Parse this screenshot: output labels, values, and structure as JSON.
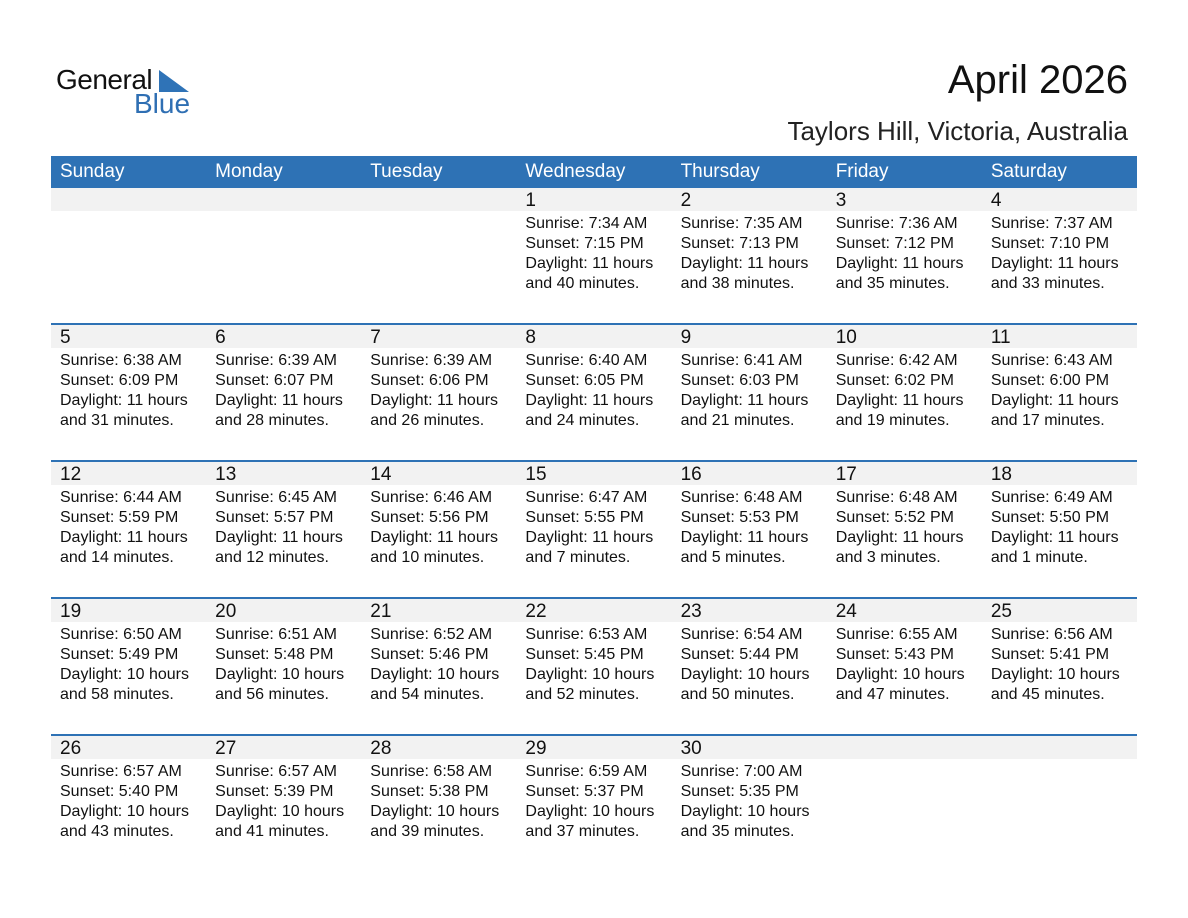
{
  "logo": {
    "text1": "General",
    "text2": "Blue"
  },
  "title": "April 2026",
  "location": "Taylors Hill, Victoria, Australia",
  "weekdays": [
    "Sunday",
    "Monday",
    "Tuesday",
    "Wednesday",
    "Thursday",
    "Friday",
    "Saturday"
  ],
  "colors": {
    "header": "#2e72b5",
    "date_band": "#f2f2f2",
    "logo_blue": "#2f6fb3"
  },
  "first_weekday_index": 3,
  "days": [
    [
      "1",
      "Sunrise: 7:34 AM",
      "Sunset: 7:15 PM",
      "Daylight: 11 hours",
      "and 40 minutes."
    ],
    [
      "2",
      "Sunrise: 7:35 AM",
      "Sunset: 7:13 PM",
      "Daylight: 11 hours",
      "and 38 minutes."
    ],
    [
      "3",
      "Sunrise: 7:36 AM",
      "Sunset: 7:12 PM",
      "Daylight: 11 hours",
      "and 35 minutes."
    ],
    [
      "4",
      "Sunrise: 7:37 AM",
      "Sunset: 7:10 PM",
      "Daylight: 11 hours",
      "and 33 minutes."
    ],
    [
      "5",
      "Sunrise: 6:38 AM",
      "Sunset: 6:09 PM",
      "Daylight: 11 hours",
      "and 31 minutes."
    ],
    [
      "6",
      "Sunrise: 6:39 AM",
      "Sunset: 6:07 PM",
      "Daylight: 11 hours",
      "and 28 minutes."
    ],
    [
      "7",
      "Sunrise: 6:39 AM",
      "Sunset: 6:06 PM",
      "Daylight: 11 hours",
      "and 26 minutes."
    ],
    [
      "8",
      "Sunrise: 6:40 AM",
      "Sunset: 6:05 PM",
      "Daylight: 11 hours",
      "and 24 minutes."
    ],
    [
      "9",
      "Sunrise: 6:41 AM",
      "Sunset: 6:03 PM",
      "Daylight: 11 hours",
      "and 21 minutes."
    ],
    [
      "10",
      "Sunrise: 6:42 AM",
      "Sunset: 6:02 PM",
      "Daylight: 11 hours",
      "and 19 minutes."
    ],
    [
      "11",
      "Sunrise: 6:43 AM",
      "Sunset: 6:00 PM",
      "Daylight: 11 hours",
      "and 17 minutes."
    ],
    [
      "12",
      "Sunrise: 6:44 AM",
      "Sunset: 5:59 PM",
      "Daylight: 11 hours",
      "and 14 minutes."
    ],
    [
      "13",
      "Sunrise: 6:45 AM",
      "Sunset: 5:57 PM",
      "Daylight: 11 hours",
      "and 12 minutes."
    ],
    [
      "14",
      "Sunrise: 6:46 AM",
      "Sunset: 5:56 PM",
      "Daylight: 11 hours",
      "and 10 minutes."
    ],
    [
      "15",
      "Sunrise: 6:47 AM",
      "Sunset: 5:55 PM",
      "Daylight: 11 hours",
      "and 7 minutes."
    ],
    [
      "16",
      "Sunrise: 6:48 AM",
      "Sunset: 5:53 PM",
      "Daylight: 11 hours",
      "and 5 minutes."
    ],
    [
      "17",
      "Sunrise: 6:48 AM",
      "Sunset: 5:52 PM",
      "Daylight: 11 hours",
      "and 3 minutes."
    ],
    [
      "18",
      "Sunrise: 6:49 AM",
      "Sunset: 5:50 PM",
      "Daylight: 11 hours",
      "and 1 minute."
    ],
    [
      "19",
      "Sunrise: 6:50 AM",
      "Sunset: 5:49 PM",
      "Daylight: 10 hours",
      "and 58 minutes."
    ],
    [
      "20",
      "Sunrise: 6:51 AM",
      "Sunset: 5:48 PM",
      "Daylight: 10 hours",
      "and 56 minutes."
    ],
    [
      "21",
      "Sunrise: 6:52 AM",
      "Sunset: 5:46 PM",
      "Daylight: 10 hours",
      "and 54 minutes."
    ],
    [
      "22",
      "Sunrise: 6:53 AM",
      "Sunset: 5:45 PM",
      "Daylight: 10 hours",
      "and 52 minutes."
    ],
    [
      "23",
      "Sunrise: 6:54 AM",
      "Sunset: 5:44 PM",
      "Daylight: 10 hours",
      "and 50 minutes."
    ],
    [
      "24",
      "Sunrise: 6:55 AM",
      "Sunset: 5:43 PM",
      "Daylight: 10 hours",
      "and 47 minutes."
    ],
    [
      "25",
      "Sunrise: 6:56 AM",
      "Sunset: 5:41 PM",
      "Daylight: 10 hours",
      "and 45 minutes."
    ],
    [
      "26",
      "Sunrise: 6:57 AM",
      "Sunset: 5:40 PM",
      "Daylight: 10 hours",
      "and 43 minutes."
    ],
    [
      "27",
      "Sunrise: 6:57 AM",
      "Sunset: 5:39 PM",
      "Daylight: 10 hours",
      "and 41 minutes."
    ],
    [
      "28",
      "Sunrise: 6:58 AM",
      "Sunset: 5:38 PM",
      "Daylight: 10 hours",
      "and 39 minutes."
    ],
    [
      "29",
      "Sunrise: 6:59 AM",
      "Sunset: 5:37 PM",
      "Daylight: 10 hours",
      "and 37 minutes."
    ],
    [
      "30",
      "Sunrise: 7:00 AM",
      "Sunset: 5:35 PM",
      "Daylight: 10 hours",
      "and 35 minutes."
    ]
  ]
}
